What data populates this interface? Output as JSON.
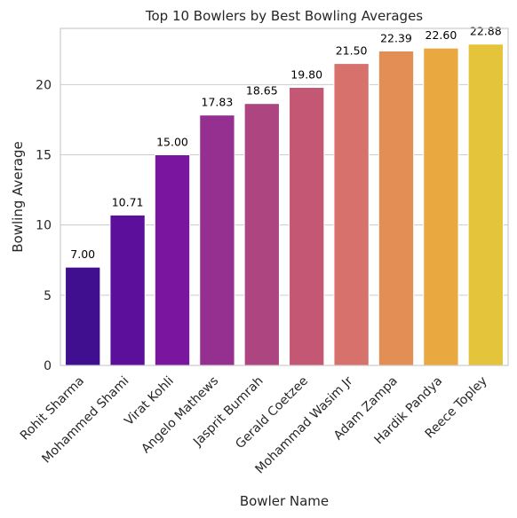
{
  "chart_data": {
    "type": "bar",
    "title": "Top 10 Bowlers by Best Bowling Averages",
    "xlabel": "Bowler Name",
    "ylabel": "Bowling Average",
    "categories": [
      "Rohit Sharma",
      "Mohammed Shami",
      "Virat Kohli",
      "Angelo Mathews",
      "Jasprit Bumrah",
      "Gerald Coetzee",
      "Mohammad Wasim Jr",
      "Adam Zampa",
      "Hardik Pandya",
      "Reece Topley"
    ],
    "values": [
      7.0,
      10.71,
      15.0,
      17.83,
      18.65,
      19.8,
      21.5,
      22.39,
      22.6,
      22.88
    ],
    "data_labels": [
      "7.00",
      "10.71",
      "15.00",
      "17.83",
      "18.65",
      "19.80",
      "21.50",
      "22.39",
      "22.60",
      "22.88"
    ],
    "ylim": [
      0,
      24
    ],
    "yticks": [
      0,
      5,
      10,
      15,
      20
    ],
    "grid": "horizontal",
    "colors": [
      "#3f0f8f",
      "#5c0f9a",
      "#7a15a0",
      "#963090",
      "#ad4580",
      "#c45874",
      "#d7716b",
      "#e38e55",
      "#eaa840",
      "#e4c43a"
    ]
  }
}
